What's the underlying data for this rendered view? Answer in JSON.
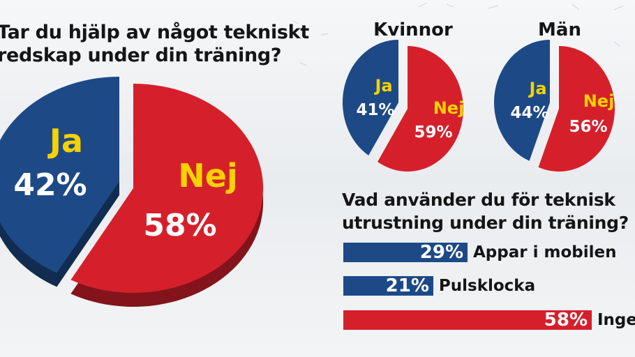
{
  "colors": {
    "ja": "#1d4a86",
    "nej": "#d5202c",
    "label_yellow": "#f7d200"
  },
  "main": {
    "title_line1": "Tar du hjälp av något tekniskt",
    "title_line2": "redskap under din träning?"
  },
  "bars_section": {
    "title_line1": "Vad använder du för teknisk",
    "title_line2": "utrustning under din träning?"
  },
  "chart_data": [
    {
      "type": "pie",
      "title": "",
      "slices": [
        {
          "label": "Ja",
          "value": 42,
          "value_label": "42%"
        },
        {
          "label": "Nej",
          "value": 58,
          "value_label": "58%"
        }
      ]
    },
    {
      "type": "pie",
      "title": "Kvinnor",
      "slices": [
        {
          "label": "Ja",
          "value": 41,
          "value_label": "41%"
        },
        {
          "label": "Nej",
          "value": 59,
          "value_label": "59%"
        }
      ]
    },
    {
      "type": "pie",
      "title": "Män",
      "slices": [
        {
          "label": "Ja",
          "value": 44,
          "value_label": "44%"
        },
        {
          "label": "Nej",
          "value": 56,
          "value_label": "56%"
        }
      ]
    },
    {
      "type": "bar",
      "orientation": "horizontal",
      "categories": [
        "Appar i mobilen",
        "Pulsklocka",
        "Ingen"
      ],
      "values": [
        29,
        21,
        58
      ],
      "value_labels": [
        "29%",
        "21%",
        "58%"
      ],
      "xlim": [
        0,
        58
      ]
    }
  ]
}
